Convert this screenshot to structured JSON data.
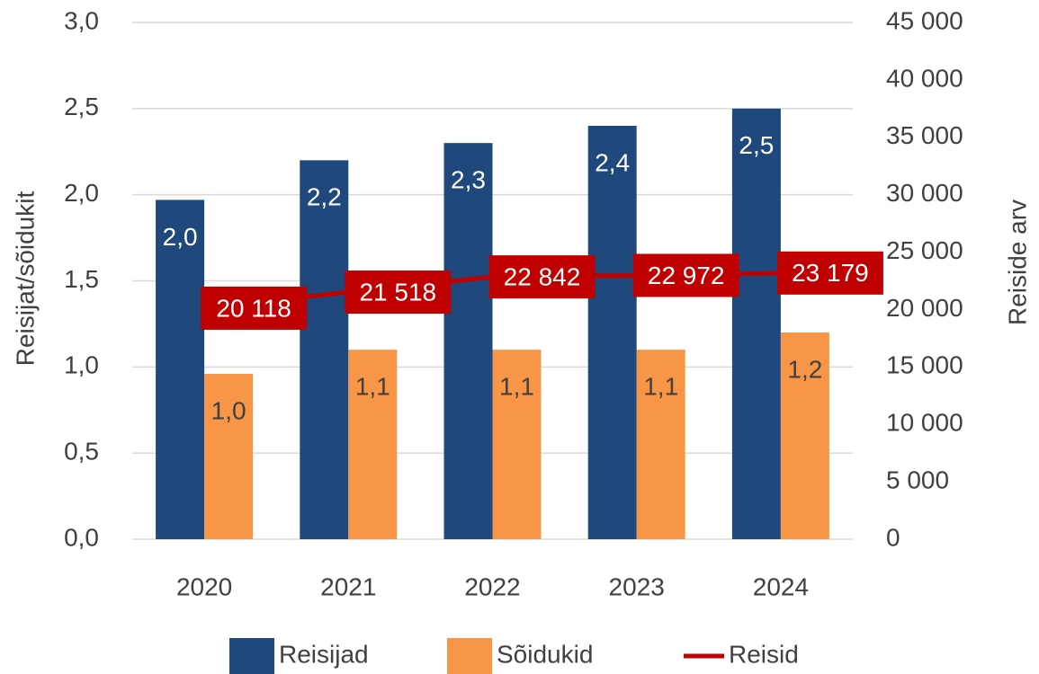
{
  "chart_data": {
    "type": "bar",
    "categories": [
      "2020",
      "2021",
      "2022",
      "2023",
      "2024"
    ],
    "ylabel": "Reisijat/sõidukit",
    "y2label": "Reiside arv",
    "ylim": [
      0,
      3
    ],
    "yticks": [
      {
        "value": 0,
        "label": "0,0"
      },
      {
        "value": 0.5,
        "label": "0,5"
      },
      {
        "value": 1,
        "label": "1,0"
      },
      {
        "value": 1.5,
        "label": "1,5"
      },
      {
        "value": 2,
        "label": "2,0"
      },
      {
        "value": 2.5,
        "label": "2,5"
      },
      {
        "value": 3,
        "label": "3,0"
      }
    ],
    "y2lim": [
      0,
      45000
    ],
    "y2ticks": [
      0,
      {
        "value": 5000,
        "label": "5 000"
      },
      {
        "value": 10000,
        "label": "10 000"
      },
      {
        "value": 15000,
        "label": "15 000"
      },
      {
        "value": 20000,
        "label": "20 000"
      },
      {
        "value": 25000,
        "label": "25 000"
      },
      {
        "value": 30000,
        "label": "30 000"
      },
      {
        "value": 35000,
        "label": "35 000"
      },
      {
        "value": 40000,
        "label": "40 000"
      },
      {
        "value": 45000,
        "label": "45 000"
      }
    ],
    "grid": true,
    "legend": "bottom",
    "series": [
      {
        "name": "Reisijad",
        "type": "bar",
        "color": "#1f497d",
        "values": [
          1.97,
          2.2,
          2.3,
          2.4,
          2.5
        ],
        "value_labels": [
          "2,0",
          "2,2",
          "2,3",
          "2,4",
          "2,5"
        ]
      },
      {
        "name": "Sõidukid",
        "type": "bar",
        "color": "#f79646",
        "values": [
          0.96,
          1.1,
          1.1,
          1.1,
          1.2
        ],
        "value_labels": [
          "1,0",
          "1,1",
          "1,1",
          "1,1",
          "1,2"
        ]
      },
      {
        "name": "Reisid",
        "type": "line",
        "axis": "y2",
        "color": "#c00000",
        "values": [
          20118,
          21518,
          22842,
          22972,
          23179
        ],
        "value_labels": [
          "20 118",
          "21 518",
          "22 842",
          "22 972",
          "23 179"
        ]
      }
    ]
  }
}
